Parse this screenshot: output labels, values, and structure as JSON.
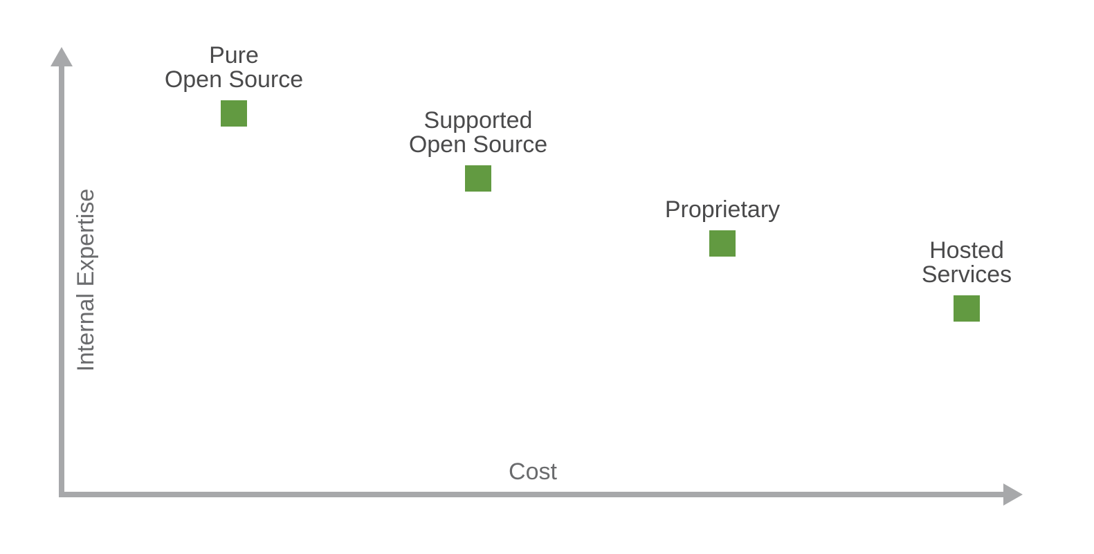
{
  "chart_data": {
    "type": "scatter",
    "title": "",
    "xlabel": "Cost",
    "ylabel": "Internal Expertise",
    "grid": false,
    "legend": "none",
    "axis_ticks": false,
    "points": [
      {
        "label_lines": [
          "Pure",
          "Open Source"
        ],
        "x": 1,
        "y": 4
      },
      {
        "label_lines": [
          "Supported",
          "Open Source"
        ],
        "x": 2,
        "y": 3
      },
      {
        "label_lines": [
          "Proprietary"
        ],
        "x": 3,
        "y": 2
      },
      {
        "label_lines": [
          "Hosted",
          "Services"
        ],
        "x": 4,
        "y": 1
      }
    ]
  },
  "colors": {
    "axis": "#a7a8aa",
    "marker": "#629a41",
    "label_text": "#4a4a4b",
    "axis_title_text": "#6a6b6d"
  }
}
